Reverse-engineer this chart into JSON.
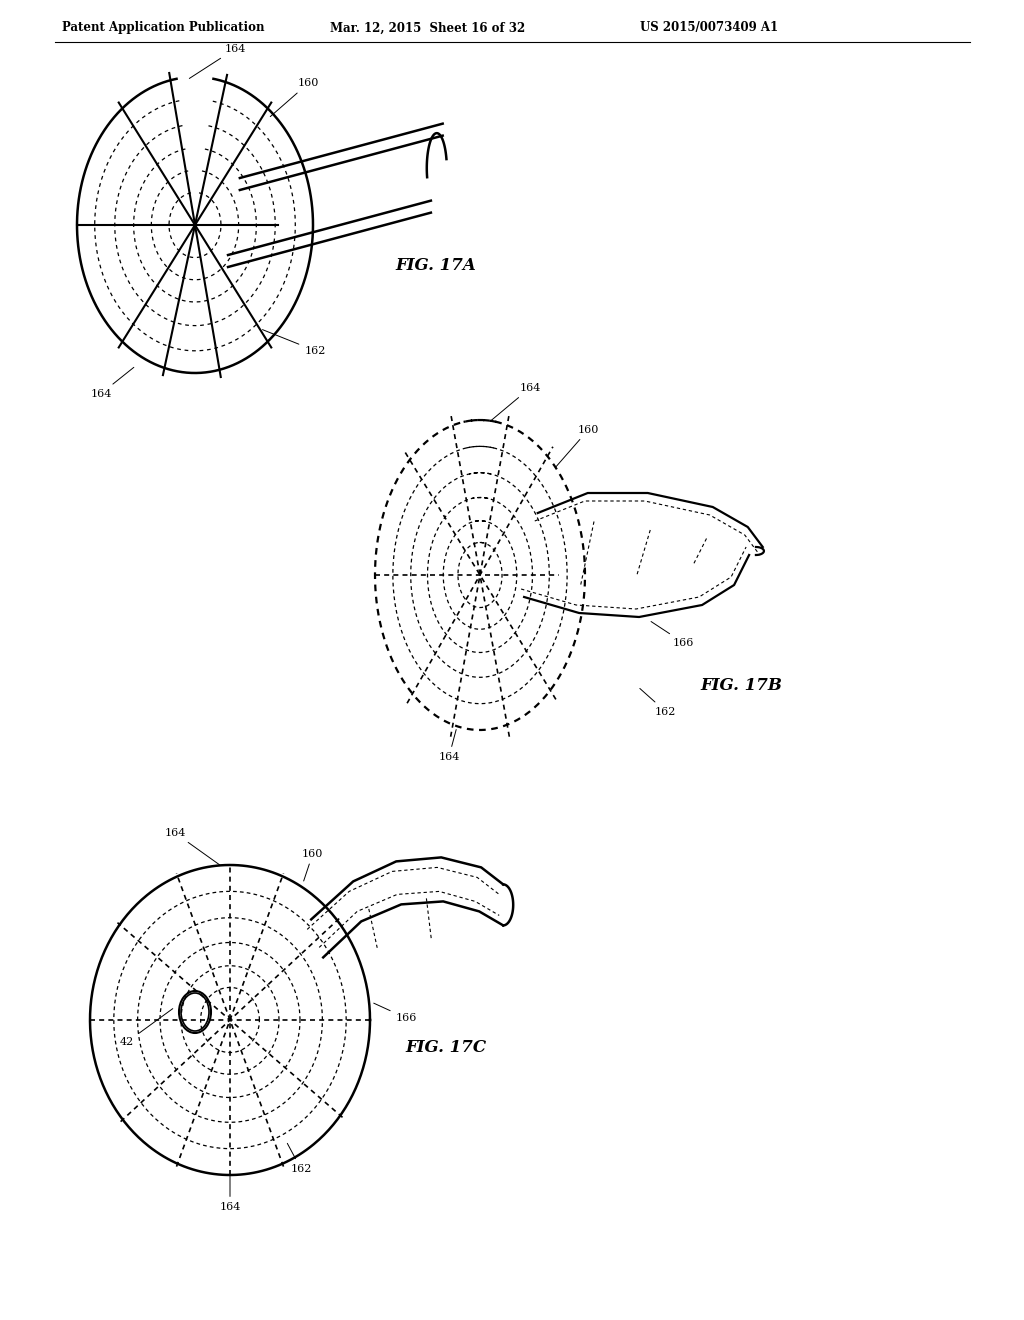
{
  "title_left": "Patent Application Publication",
  "title_mid": "Mar. 12, 2015  Sheet 16 of 32",
  "title_right": "US 2015/0073409 A1",
  "background_color": "#ffffff",
  "line_color": "#000000",
  "fig_label_17A": "FIG. 17A",
  "fig_label_17B": "FIG. 17B",
  "fig_label_17C": "FIG. 17C"
}
